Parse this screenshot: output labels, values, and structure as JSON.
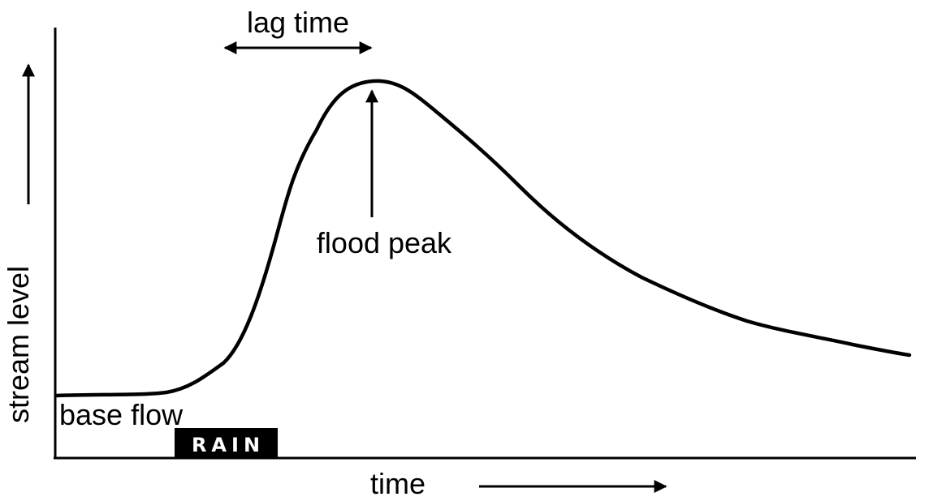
{
  "diagram": {
    "ylabel": "stream level",
    "xlabel": "time",
    "annotations": {
      "lag_time": "lag time",
      "flood_peak": "flood peak",
      "base_flow": "base flow",
      "rain": "RAIN"
    },
    "colors": {
      "line": "#000000",
      "background": "#ffffff",
      "rain_box": "#000000",
      "rain_text": "#ffffff"
    }
  }
}
